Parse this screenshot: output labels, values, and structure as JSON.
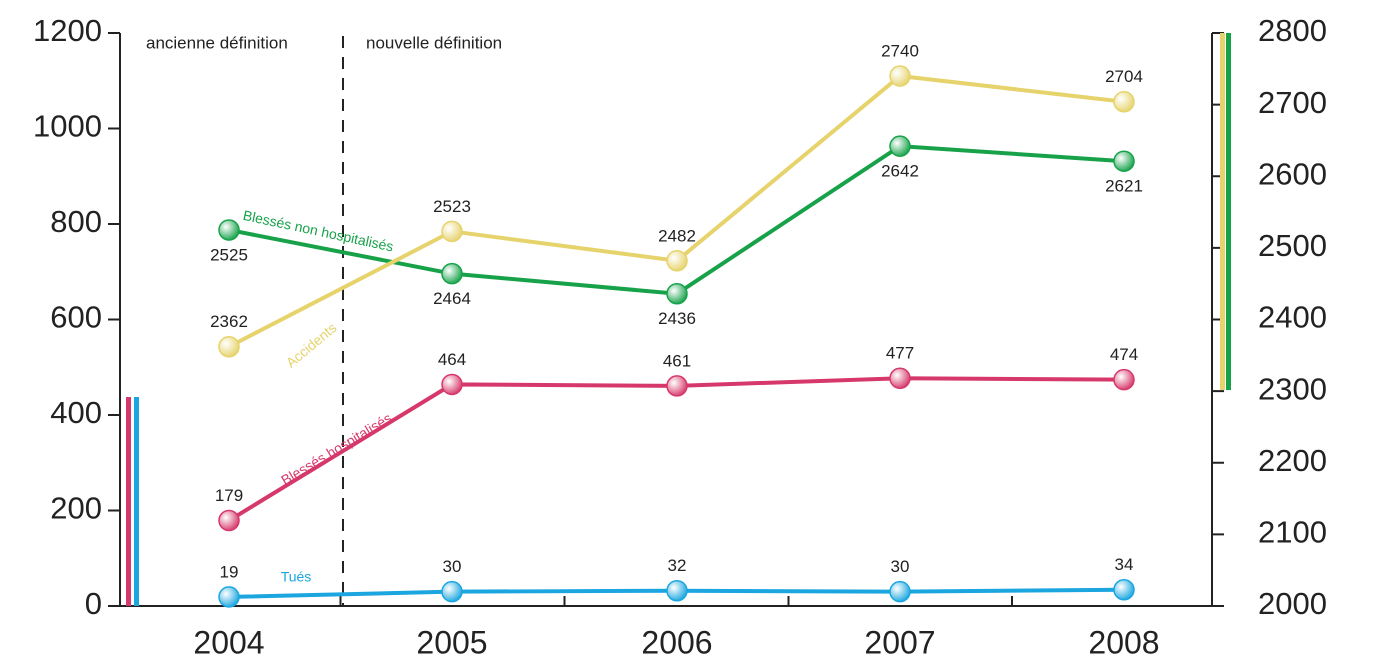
{
  "chart_data": {
    "type": "line",
    "categories": [
      "2004",
      "2005",
      "2006",
      "2007",
      "2008"
    ],
    "annotations": [
      "ancienne définition",
      "nouvelle définition"
    ],
    "ylim": [
      0,
      1200
    ],
    "yticks": [
      0,
      200,
      400,
      600,
      800,
      1000,
      1200
    ],
    "y2lim": [
      2000,
      2800
    ],
    "y2ticks": [
      2000,
      2100,
      2200,
      2300,
      2400,
      2500,
      2600,
      2700,
      2800
    ],
    "series": [
      {
        "name": "Tués",
        "color": "#1ba6df",
        "values": [
          19,
          30,
          32,
          30,
          34
        ]
      },
      {
        "name": "Blessés hospitalisés",
        "color": "#d6386b",
        "values": [
          179,
          464,
          461,
          477,
          474
        ]
      },
      {
        "name": "Blessés non hospitalisés",
        "color": "#17a24a",
        "axis": "y2",
        "values": [
          2525,
          2464,
          2436,
          2642,
          2621
        ]
      },
      {
        "name": "Accidents",
        "color": "#e6d36c",
        "axis": "y2",
        "values": [
          2362,
          2523,
          2482,
          2740,
          2704
        ]
      }
    ]
  }
}
